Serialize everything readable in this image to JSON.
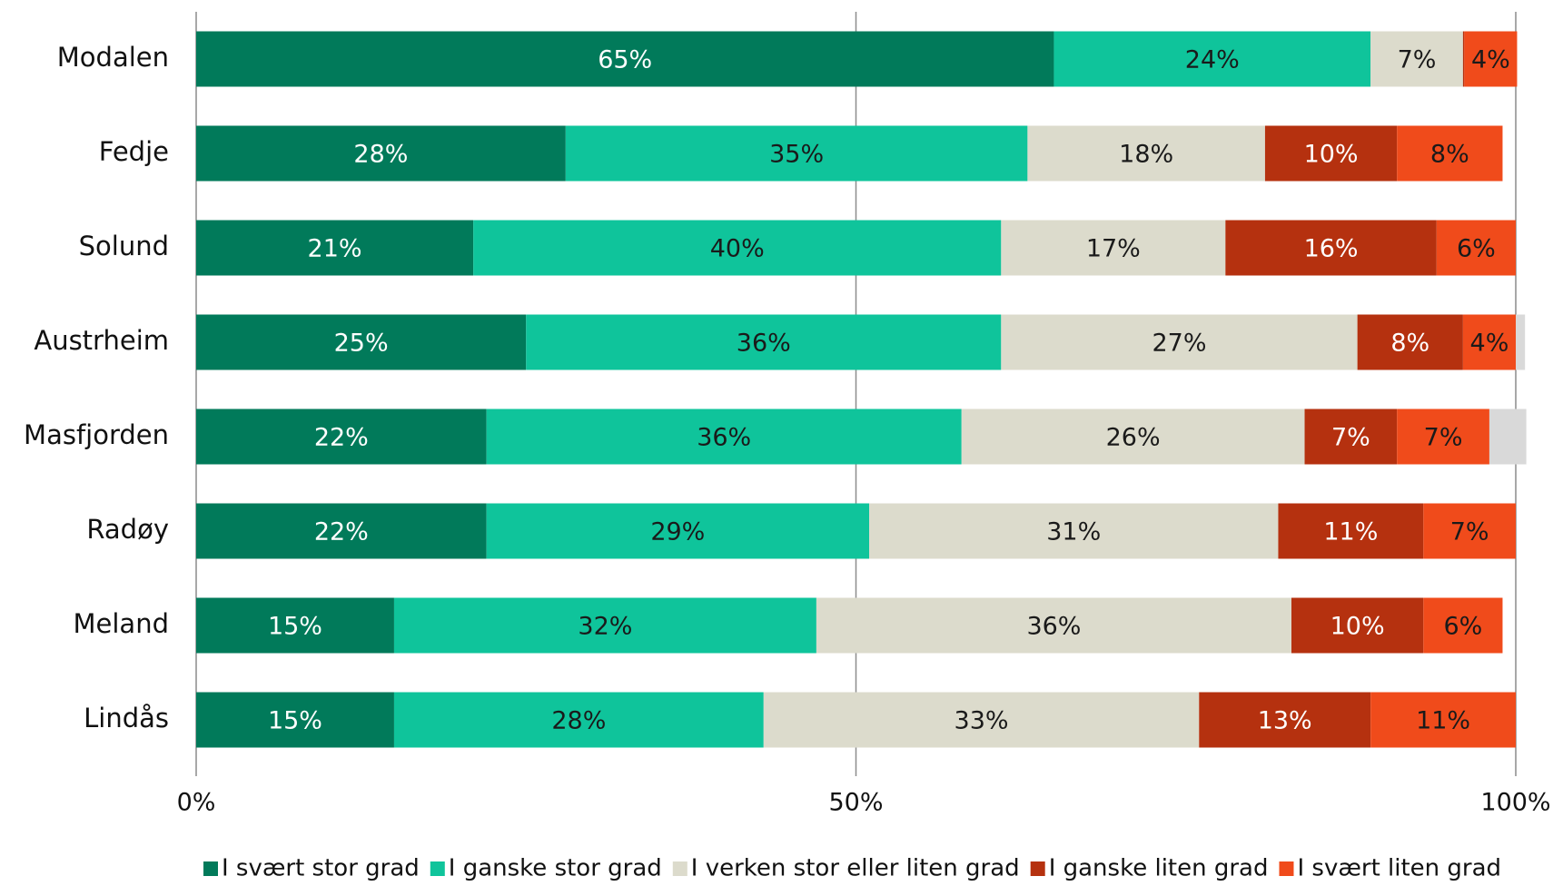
{
  "chart_data": {
    "type": "stacked_barh",
    "categories": [
      "Modalen",
      "Fedje",
      "Solund",
      "Austrheim",
      "Masfjorden",
      "Radøy",
      "Meland",
      "Lindås"
    ],
    "series": [
      {
        "name": "I svært stor grad",
        "color": "#017a5a",
        "label_color": "#ffffff",
        "values": [
          65,
          28,
          21,
          25,
          22,
          22,
          15,
          15
        ],
        "value_labels": [
          "65%",
          "28%",
          "21%",
          "25%",
          "22%",
          "22%",
          "15%",
          "15%"
        ]
      },
      {
        "name": "I ganske stor grad",
        "color": "#0fc49b",
        "label_color": "#1a1a1a",
        "values": [
          24,
          35,
          40,
          36,
          36,
          29,
          32,
          28
        ],
        "value_labels": [
          "24%",
          "35%",
          "40%",
          "36%",
          "36%",
          "29%",
          "32%",
          "28%"
        ]
      },
      {
        "name": "I verken stor eller liten grad",
        "color": "#dcdbcc",
        "label_color": "#1a1a1a",
        "values": [
          7,
          18,
          17,
          27,
          26,
          31,
          36,
          33
        ],
        "value_labels": [
          "7%",
          "18%",
          "17%",
          "27%",
          "26%",
          "31%",
          "36%",
          "33%"
        ]
      },
      {
        "name": "I ganske liten grad",
        "color": "#b5310f",
        "label_color": "#ffffff",
        "values": [
          0.1,
          10,
          16,
          8,
          7,
          11,
          10,
          13
        ],
        "value_labels": [
          null,
          "10%",
          "16%",
          "8%",
          "7%",
          "11%",
          "10%",
          "13%"
        ]
      },
      {
        "name": "I svært liten grad",
        "color": "#f04b1b",
        "label_color": "#1a1a1a",
        "values": [
          4,
          8,
          6,
          4,
          7,
          7,
          6,
          11
        ],
        "value_labels": [
          "4%",
          "8%",
          "6%",
          "4%",
          "7%",
          "7%",
          "6%",
          "11%"
        ]
      },
      {
        "color": "#d9d9d9",
        "values": [
          0,
          0,
          0,
          0.7,
          2.8,
          0,
          0,
          0
        ]
      }
    ],
    "xlim": [
      0,
      100
    ],
    "xticks": [
      {
        "value": 0,
        "label": "0%"
      },
      {
        "value": 50,
        "label": "50%"
      },
      {
        "value": 100,
        "label": "100%"
      }
    ],
    "grid": true
  }
}
